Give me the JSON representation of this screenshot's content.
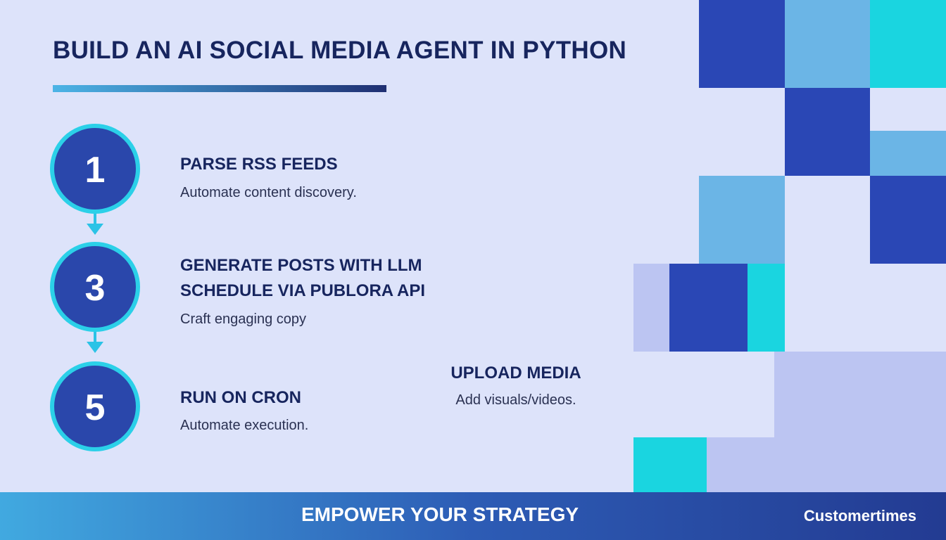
{
  "header": {
    "title": "BUILD AN AI SOCIAL MEDIA AGENT IN PYTHON"
  },
  "steps": [
    {
      "number": "1",
      "title_lines": [
        "PARSE RSS FEEDS"
      ],
      "description": "Automate content discovery."
    },
    {
      "number": "3",
      "title_lines": [
        "GENERATE POSTS WITH LLM",
        "SCHEDULE VIA PUBLORA API"
      ],
      "description": "Craft engaging copy"
    },
    {
      "number": "5",
      "title_lines": [
        "RUN ON CRON"
      ],
      "description": "Automate execution."
    }
  ],
  "side_step": {
    "title": "UPLOAD MEDIA",
    "description": "Add visuals/videos."
  },
  "footer": {
    "tagline": "EMPOWER YOUR STRATEGY",
    "brand": "Customertimes"
  }
}
